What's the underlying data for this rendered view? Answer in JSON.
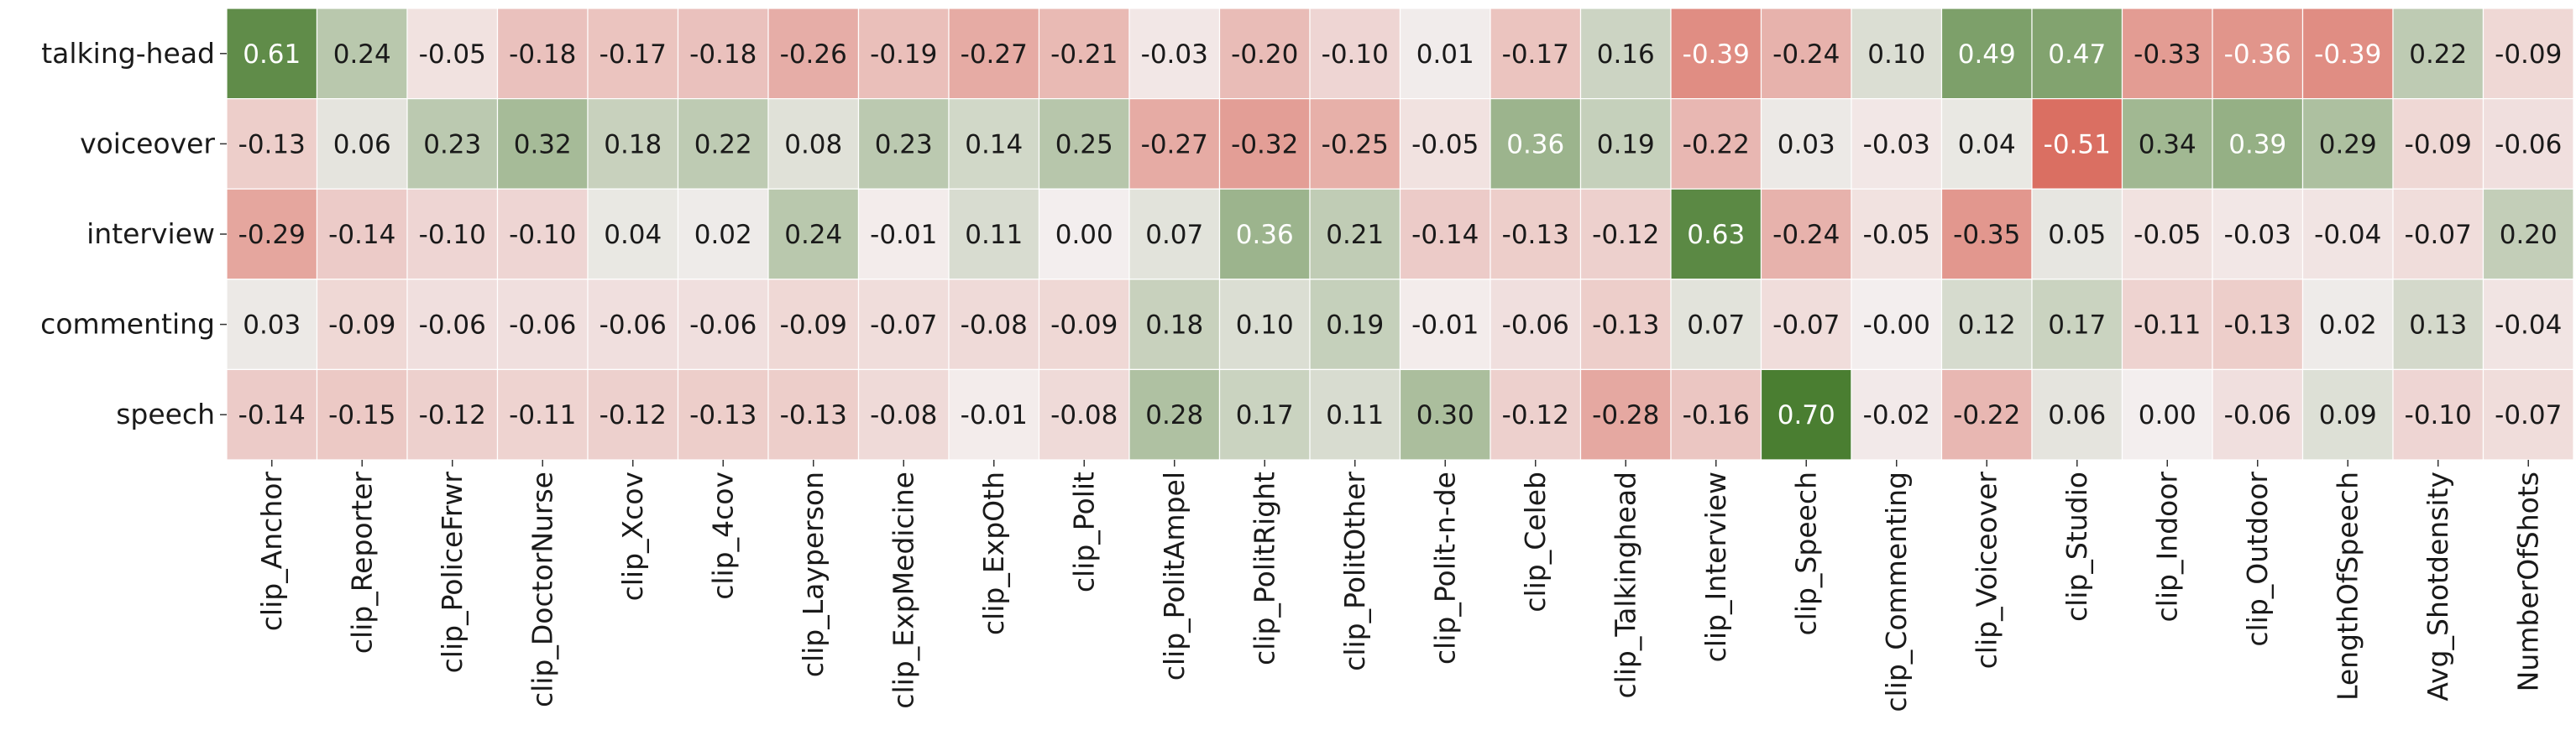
{
  "chart_data": {
    "type": "heatmap",
    "rows": [
      "talking-head",
      "voiceover",
      "interview",
      "commenting",
      "speech"
    ],
    "columns": [
      "clip_Anchor",
      "clip_Reporter",
      "clip_PoliceFrwr",
      "clip_DoctorNurse",
      "clip_Xcov",
      "clip_4cov",
      "clip_Layperson",
      "clip_ExpMedicine",
      "clip_ExpOth",
      "clip_Polit",
      "clip_PolitAmpel",
      "clip_PolitRight",
      "clip_PolitOther",
      "clip_Polit-n-de",
      "clip_Celeb",
      "clip_Talkinghead",
      "clip_Interview",
      "clip_Speech",
      "clip_Commenting",
      "clip_Voiceover",
      "clip_Studio",
      "clip_Indoor",
      "clip_Outdoor",
      "LengthOfSpeech",
      "Avg_Shotdensity",
      "NumberOfShots"
    ],
    "values": [
      [
        0.61,
        0.24,
        -0.05,
        -0.18,
        -0.17,
        -0.18,
        -0.26,
        -0.19,
        -0.27,
        -0.21,
        -0.03,
        -0.2,
        -0.1,
        0.01,
        -0.17,
        0.16,
        -0.39,
        -0.24,
        0.1,
        0.49,
        0.47,
        -0.33,
        -0.36,
        -0.39,
        0.22,
        -0.09
      ],
      [
        -0.13,
        0.06,
        0.23,
        0.32,
        0.18,
        0.22,
        0.08,
        0.23,
        0.14,
        0.25,
        -0.27,
        -0.32,
        -0.25,
        -0.05,
        0.36,
        0.19,
        -0.22,
        0.03,
        -0.03,
        0.04,
        -0.51,
        0.34,
        0.39,
        0.29,
        -0.09,
        -0.06
      ],
      [
        -0.29,
        -0.14,
        -0.1,
        -0.1,
        0.04,
        0.02,
        0.24,
        -0.01,
        0.11,
        0.0,
        0.07,
        0.36,
        0.21,
        -0.14,
        -0.13,
        -0.12,
        0.63,
        -0.24,
        -0.05,
        -0.35,
        0.05,
        -0.05,
        -0.03,
        -0.04,
        -0.07,
        0.2
      ],
      [
        0.03,
        -0.09,
        -0.06,
        -0.06,
        -0.06,
        -0.06,
        -0.09,
        -0.07,
        -0.08,
        -0.09,
        0.18,
        0.1,
        0.19,
        -0.01,
        -0.06,
        -0.13,
        0.07,
        -0.07,
        -0.0,
        0.12,
        0.17,
        -0.11,
        -0.13,
        0.02,
        0.13,
        -0.04
      ],
      [
        -0.14,
        -0.15,
        -0.12,
        -0.11,
        -0.12,
        -0.13,
        -0.13,
        -0.08,
        -0.01,
        -0.08,
        0.28,
        0.17,
        0.11,
        0.3,
        -0.12,
        -0.28,
        -0.16,
        0.7,
        -0.02,
        -0.22,
        0.06,
        0.0,
        -0.06,
        0.09,
        -0.1,
        -0.07
      ]
    ],
    "value_range": [
      -0.7,
      0.7
    ],
    "colormap": {
      "negative": "#d0402e",
      "center": "#f3eeee",
      "positive": "#4a7e31"
    },
    "annotation_format": "2 decimals",
    "grid": false,
    "legend": "none"
  }
}
